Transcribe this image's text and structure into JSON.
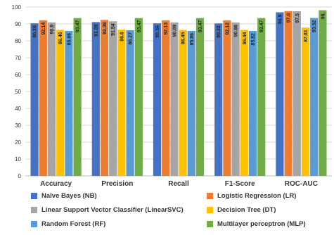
{
  "chart_data": {
    "type": "bar",
    "categories": [
      "Accuracy",
      "Precision",
      "Recall",
      "F1-Score",
      "ROC-AUC"
    ],
    "series": [
      {
        "name": "Naïve Bayes (NB)",
        "color": "#4472C4",
        "values": [
          90.36,
          91.09,
          90.36,
          90.32,
          96.9
        ]
      },
      {
        "name": "Logistic Regression (LR)",
        "color": "#ED7D31",
        "values": [
          92.14,
          92.36,
          92.13,
          92.12,
          97.6
        ]
      },
      {
        "name": "Linear Support Vector Classifier (LinearSVC)",
        "color": "#A5A5A5",
        "values": [
          90.9,
          91.54,
          90.89,
          90.86,
          97.5
        ]
      },
      {
        "name": "Decision Tree (DT)",
        "color": "#FFC000",
        "values": [
          86.46,
          86.6,
          86.45,
          86.44,
          87.81
        ]
      },
      {
        "name": "Random Forest (RF)",
        "color": "#5B9BD5",
        "values": [
          85.86,
          86.27,
          85.86,
          85.82,
          93.52
        ]
      },
      {
        "name": "Multilayer perceptron (MLP)",
        "color": "#70AD47",
        "values": [
          93.47,
          93.47,
          93.47,
          93.47,
          98.1
        ]
      }
    ],
    "data_labels": [
      [
        "90.36",
        "92.14",
        "90.9",
        "86.46",
        "85.86",
        "93.47"
      ],
      [
        "91.09",
        "92.36",
        "91.54",
        "86.6",
        "86.27",
        "93.47"
      ],
      [
        "90.36",
        "92.13",
        "90.89",
        "86.45",
        "85.86",
        "93.47"
      ],
      [
        "90.32",
        "92.12",
        "90.86",
        "86.44",
        "85.82",
        "93.47"
      ],
      [
        "96.9",
        "97.6",
        "97.5",
        "87.81",
        "93.52",
        "98."
      ]
    ],
    "yticks": [
      "0",
      "10",
      "20",
      "30",
      "40",
      "50",
      "60",
      "70",
      "80",
      "90",
      "100"
    ],
    "ylim": [
      0,
      100
    ],
    "grid": true,
    "legend_position": "bottom",
    "title": "",
    "xlabel": "",
    "ylabel": ""
  }
}
